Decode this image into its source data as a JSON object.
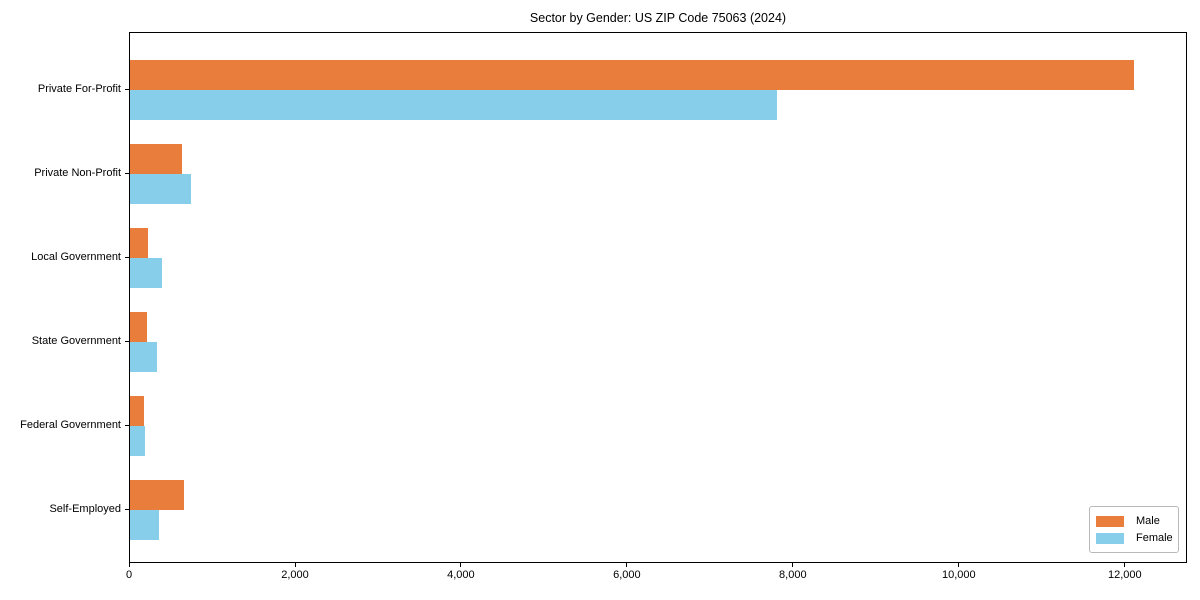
{
  "figure": {
    "title": "Sector by Gender: US ZIP Code 75063 (2024)",
    "background_color": "#ffffff",
    "axis_color": "#000000"
  },
  "chart_data": {
    "type": "bar",
    "orientation": "horizontal",
    "title": "Sector by Gender: US ZIP Code 75063 (2024)",
    "categories": [
      "Private For-Profit",
      "Private Non-Profit",
      "Local Government",
      "State Government",
      "Federal Government",
      "Self-Employed"
    ],
    "series": [
      {
        "name": "Male",
        "color": "#E87D3C",
        "values": [
          12100,
          630,
          220,
          200,
          165,
          650
        ]
      },
      {
        "name": "Female",
        "color": "#87CEEB",
        "values": [
          7800,
          730,
          380,
          330,
          185,
          350
        ]
      }
    ],
    "xlabel": "",
    "ylabel": "",
    "xlim": [
      0,
      12750
    ],
    "xticks": [
      0,
      2000,
      4000,
      6000,
      8000,
      10000,
      12000
    ],
    "xtick_labels": [
      "0",
      "2,000",
      "4,000",
      "6,000",
      "8,000",
      "10,000",
      "12,000"
    ],
    "grid": false,
    "legend_position": "lower right",
    "legend_entries": [
      "Male",
      "Female"
    ]
  }
}
